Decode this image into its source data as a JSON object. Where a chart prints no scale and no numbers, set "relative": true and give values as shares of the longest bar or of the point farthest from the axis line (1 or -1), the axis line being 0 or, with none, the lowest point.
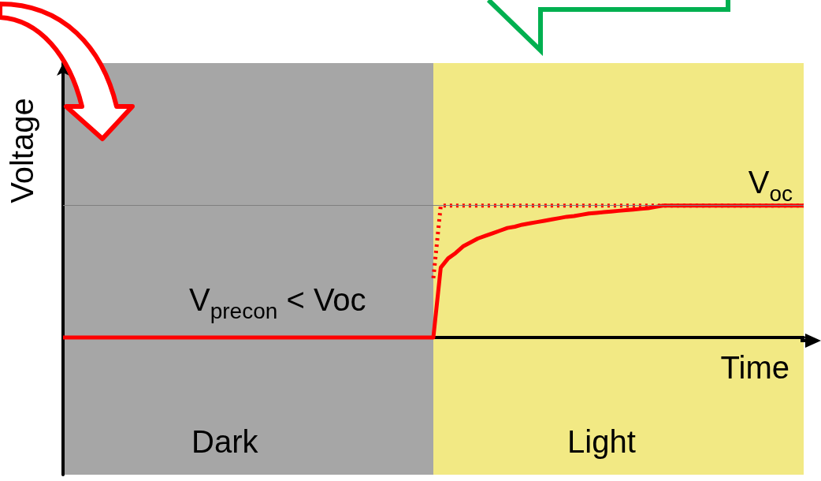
{
  "chart_data": {
    "type": "line",
    "relative": true,
    "xlabel": "Time",
    "ylabel": "Voltage",
    "grid": false,
    "marker": "none",
    "categories": [
      null,
      null,
      null,
      null,
      null,
      null,
      null,
      null,
      null,
      null,
      null,
      null,
      null,
      null,
      null,
      null,
      null,
      null,
      null,
      null,
      null,
      null,
      null,
      null,
      null,
      null,
      null,
      null,
      null,
      null,
      null,
      null,
      null,
      null,
      null,
      null,
      null,
      null,
      null,
      null,
      null,
      null,
      null,
      null,
      null,
      null,
      null,
      null,
      null,
      null,
      null,
      null,
      null,
      null,
      null,
      null,
      null,
      null,
      null,
      null,
      null,
      null,
      null,
      null,
      null,
      null,
      null,
      null,
      null,
      null,
      null,
      null,
      null,
      null,
      null,
      null,
      null,
      null,
      null,
      null,
      null,
      null,
      null,
      null,
      null,
      null,
      null,
      null,
      null,
      null,
      null,
      null,
      null,
      null,
      null,
      null,
      null,
      null,
      null,
      null,
      null
    ],
    "series": [
      {
        "color": "#ff0000",
        "line_style": "solid",
        "values": [
          0,
          0,
          0,
          0,
          0,
          0,
          0,
          0,
          0,
          0,
          0,
          0,
          0,
          0,
          0,
          0,
          0,
          0,
          0,
          0,
          0,
          0,
          0,
          0,
          0,
          0,
          0,
          0,
          0,
          0,
          0,
          0,
          0,
          0,
          0,
          0,
          0,
          0,
          0,
          0,
          0,
          0,
          0,
          0,
          0,
          0,
          0,
          0,
          0,
          0,
          0,
          0.53,
          0.6,
          0.64,
          0.69,
          0.72,
          0.75,
          0.77,
          0.79,
          0.81,
          0.83,
          0.84,
          0.855,
          0.865,
          0.875,
          0.885,
          0.895,
          0.905,
          0.915,
          0.92,
          0.93,
          0.94,
          0.945,
          0.95,
          0.955,
          0.96,
          0.965,
          0.97,
          0.975,
          0.98,
          0.99,
          1,
          1,
          1,
          1,
          1,
          1,
          1,
          1,
          1,
          1,
          1,
          1,
          1,
          1,
          1,
          1,
          1,
          1,
          1,
          1
        ]
      },
      {
        "color": "#ff0000",
        "line_style": "dotted",
        "values": [
          null,
          null,
          null,
          null,
          null,
          null,
          null,
          null,
          null,
          null,
          null,
          null,
          null,
          null,
          null,
          null,
          null,
          null,
          null,
          null,
          null,
          null,
          null,
          null,
          null,
          null,
          null,
          null,
          null,
          null,
          null,
          null,
          null,
          null,
          null,
          null,
          null,
          null,
          null,
          null,
          null,
          null,
          null,
          null,
          null,
          null,
          null,
          null,
          null,
          null,
          0.45,
          1,
          1,
          1,
          1,
          1,
          1,
          1,
          1,
          1,
          1,
          1,
          1,
          1,
          1,
          1,
          1,
          1,
          1,
          1,
          1,
          1,
          1,
          1,
          1,
          1,
          1,
          1,
          1,
          1,
          1,
          1,
          1,
          1,
          1,
          1,
          1,
          1,
          1,
          1,
          1,
          1,
          1,
          1,
          1,
          1,
          1,
          1,
          1,
          1,
          1
        ]
      }
    ],
    "ref_lines": [
      {
        "axis": "y",
        "value": 1,
        "label": "V$_{oc}$",
        "color": "#808080"
      }
    ],
    "annotations": [
      "V$_{precon}$ < Voc",
      "Dark",
      "Light"
    ]
  }
}
